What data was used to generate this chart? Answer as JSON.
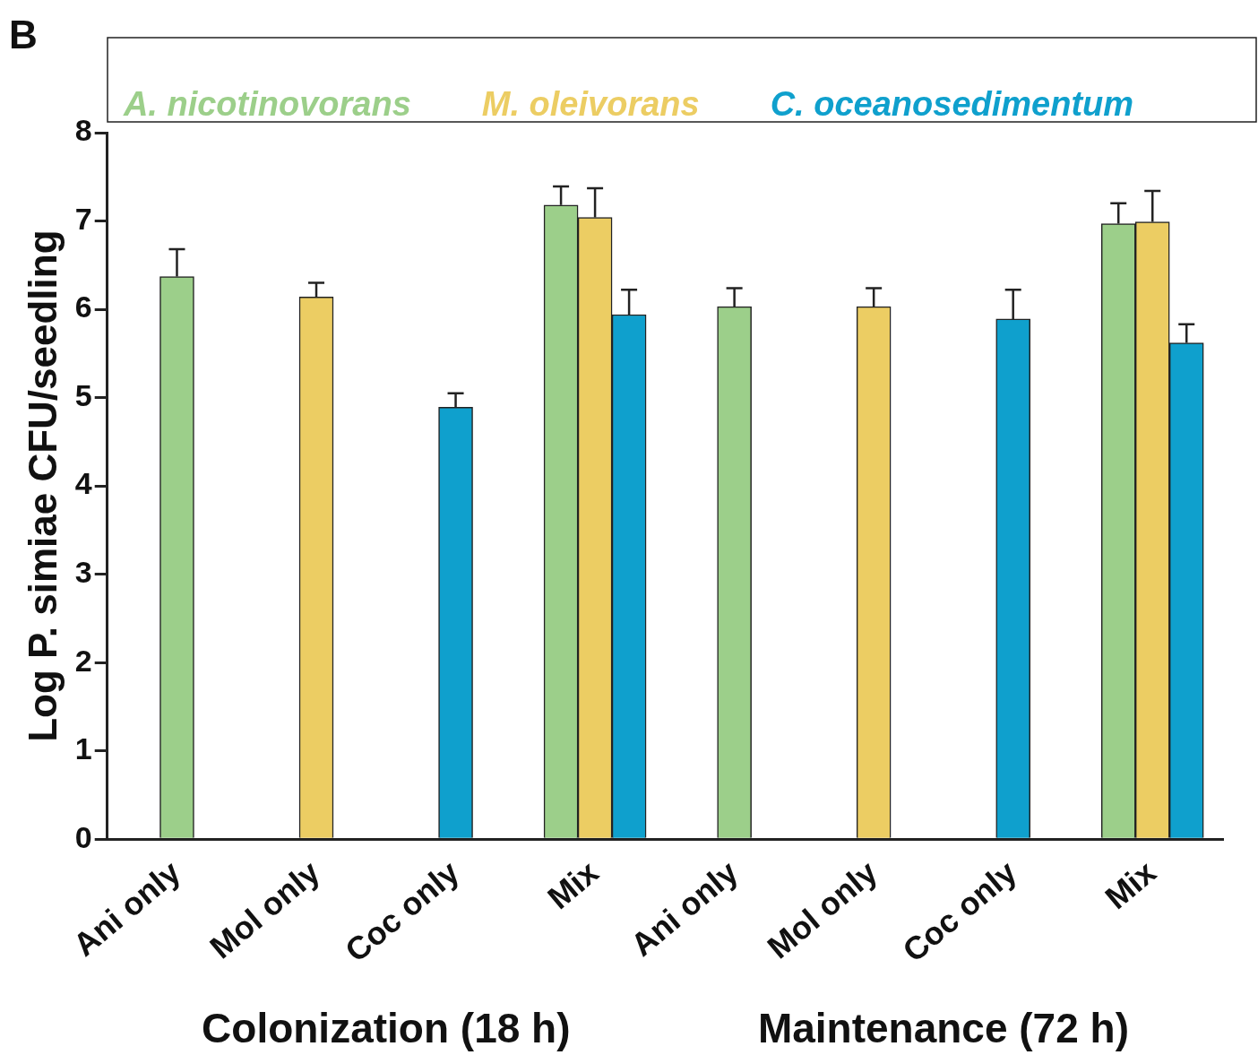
{
  "chart_data": {
    "type": "bar",
    "categories": [
      "Ani only",
      "Mol only",
      "Coc only",
      "Mix",
      "Ani only",
      "Mol only",
      "Coc only",
      "Mix"
    ],
    "series": [
      {
        "name": "A. nicotinovorans",
        "color": "#9ccf8a",
        "values": [
          6.37,
          null,
          null,
          7.18,
          6.03,
          null,
          null,
          6.97
        ],
        "errors": [
          [
            6.37,
            6.68
          ],
          null,
          null,
          [
            7.18,
            7.39
          ],
          [
            6.03,
            6.24
          ],
          null,
          null,
          [
            6.97,
            7.2
          ]
        ]
      },
      {
        "name": "M. oleivorans",
        "color": "#eccd63",
        "values": [
          null,
          6.14,
          null,
          7.04,
          null,
          6.03,
          null,
          6.99
        ],
        "errors": [
          null,
          [
            6.14,
            6.3
          ],
          null,
          [
            7.04,
            7.37
          ],
          null,
          [
            6.03,
            6.24
          ],
          null,
          [
            6.99,
            7.34
          ]
        ]
      },
      {
        "name": "C. oceanosedimentum",
        "color": "#0fa0cd",
        "values": [
          null,
          null,
          4.89,
          5.94,
          null,
          null,
          5.89,
          5.62
        ],
        "errors": [
          null,
          null,
          [
            4.89,
            5.05
          ],
          [
            5.94,
            6.22
          ],
          null,
          null,
          [
            5.89,
            6.22
          ],
          [
            5.62,
            5.83
          ]
        ]
      }
    ],
    "ylabel": "Log P. simiae CFU/seedling",
    "ylim": [
      0,
      8
    ],
    "yticks": [
      0,
      1,
      2,
      3,
      4,
      5,
      6,
      7,
      8
    ],
    "grid": false,
    "legend": "top",
    "annotations": [
      "B",
      "Colonization (18 h)",
      "Maintenance (72 h)"
    ]
  }
}
